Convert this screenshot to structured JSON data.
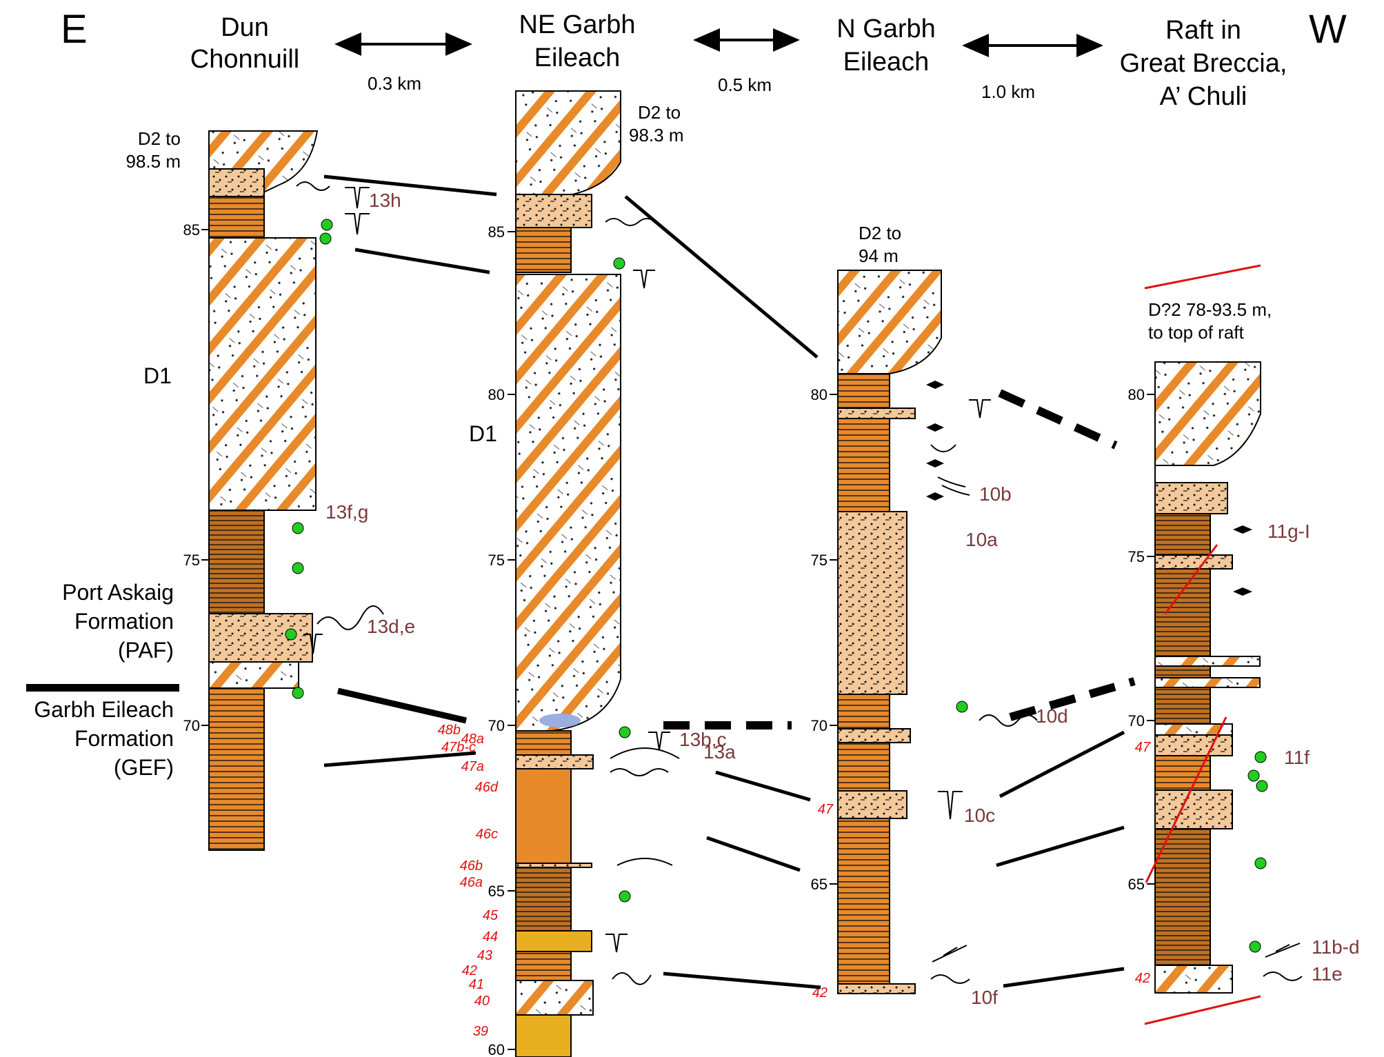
{
  "directions": {
    "east": "E",
    "west": "W"
  },
  "columns": {
    "dun": {
      "title_lines": [
        "Dun",
        "Chonnuill"
      ],
      "top_note": [
        "D2 to",
        "98.5 m"
      ],
      "unit_label": "D1"
    },
    "ne": {
      "title_lines": [
        "NE Garbh",
        "Eileach"
      ],
      "top_note": [
        "D2 to",
        "98.3 m"
      ],
      "unit_label": "D1"
    },
    "n": {
      "title_lines": [
        "N Garbh",
        "Eileach"
      ],
      "top_note": [
        "D2 to",
        "94 m"
      ]
    },
    "raft": {
      "title_lines": [
        "Raft in",
        "Great Breccia,",
        "A’ Chuli"
      ],
      "top_note": [
        "D?2 78-93.5 m,",
        "to top of raft"
      ]
    }
  },
  "distances": [
    "0.3 km",
    "0.5 km",
    "1.0 km"
  ],
  "formations": {
    "paf": [
      "Port Askaig",
      "Formation",
      "(PAF)"
    ],
    "gef": [
      "Garbh Eileach",
      "Formation",
      "(GEF)"
    ]
  },
  "ticks": {
    "dun": [
      "85",
      "75",
      "70"
    ],
    "ne": [
      "85",
      "80",
      "75",
      "70",
      "65",
      "60"
    ],
    "n": [
      "80",
      "75",
      "70",
      "65"
    ],
    "raft": [
      "80",
      "75",
      "70",
      "65"
    ]
  },
  "figure_refs": {
    "h13": "13h",
    "fg13": "13f,g",
    "de13": "13d,e",
    "bc13": "13b,c",
    "a13": "13a",
    "b10": "10b",
    "a10": "10a",
    "d10": "10d",
    "c10": "10c",
    "f10": "10f",
    "gi11": "11g-I",
    "f11": "11f",
    "bd11": "11b-d",
    "e11": "11e"
  },
  "beds": {
    "ne": [
      "48b",
      "48a",
      "47b-c",
      "47a",
      "46d",
      "46c",
      "46b",
      "46a",
      "45",
      "44",
      "43",
      "42",
      "41",
      "40",
      "39"
    ],
    "n": [
      "47",
      "42"
    ],
    "raft": [
      "47",
      "42"
    ]
  },
  "colors": {
    "orange": "#e8892a",
    "brown": "#c07020",
    "yellow": "#e8b020",
    "green": "#22cc22",
    "red": "#e01010",
    "blue": "#9aaee0",
    "code_text": "#7a3a3a"
  }
}
